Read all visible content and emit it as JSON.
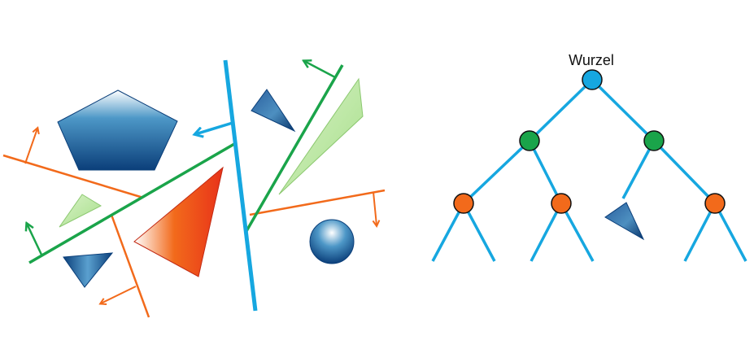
{
  "tree": {
    "root_label": "Wurzel"
  },
  "colors": {
    "partition_level_1": "#16a7e0",
    "partition_level_2": "#1aa44a",
    "partition_level_3": "#f26a1b",
    "root_node": "#16a7e0",
    "level_1_node": "#1aa44a",
    "level_2_node": "#f26a1b",
    "dark_blue": "#0b3f7a",
    "light_blue": "#ffffff",
    "green_fill": "#a7df8a",
    "red_fill": "#e8321a"
  },
  "icons": {
    "arrow": "normal-arrow-icon"
  }
}
